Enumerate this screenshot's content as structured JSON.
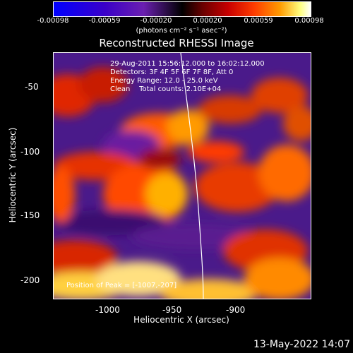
{
  "colorbar": {
    "ticks": [
      "-0.00098",
      "-0.00059",
      "-0.00020",
      "0.00020",
      "0.00059",
      "0.00098"
    ],
    "units": "(photons cm⁻² s⁻¹ asec⁻²)"
  },
  "chart_data": {
    "type": "heatmap",
    "title": "Reconstructed RHESSI Image",
    "xlabel": "Heliocentric X (arcsec)",
    "ylabel": "Heliocentric Y (arcsec)",
    "xlim": [
      -1050,
      -860
    ],
    "ylim": [
      -215,
      -28
    ],
    "x_ticks": [
      "-1000",
      "-950",
      "-900"
    ],
    "y_ticks": [
      "-50",
      "-100",
      "-150",
      "-200"
    ],
    "colorbar_range": [
      -0.00098,
      0.00098
    ],
    "info_lines": [
      "29-Aug-2011 15:56:12.000 to 16:02:12.000",
      "Detectors: 3F 4F 5F 6F 7F 8F, Att 0",
      "Energy Range: 12.0 - 25.0 keV",
      "Clean    Total counts: 2.10E+04"
    ],
    "peak_label": "Position of Peak = [-1007,-207]",
    "peak": [
      -1007,
      -207
    ]
  },
  "footer": {
    "date": "13-May-2022 14:07"
  }
}
